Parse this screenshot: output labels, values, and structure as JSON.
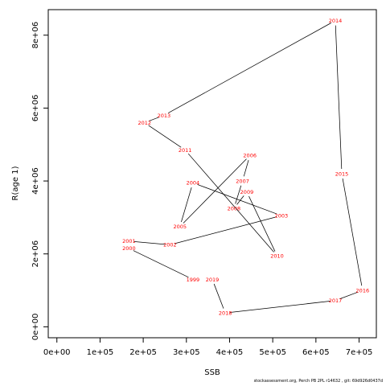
{
  "chart_data": {
    "type": "line",
    "xlabel": "SSB",
    "ylabel": "R(age 1)",
    "xlim": [
      -20000,
      740000
    ],
    "ylim": [
      -300000,
      8700000
    ],
    "x_ticks": [
      {
        "value": 0,
        "label": "0e+00"
      },
      {
        "value": 100000,
        "label": "1e+05"
      },
      {
        "value": 200000,
        "label": "2e+05"
      },
      {
        "value": 300000,
        "label": "3e+05"
      },
      {
        "value": 400000,
        "label": "4e+05"
      },
      {
        "value": 500000,
        "label": "5e+05"
      },
      {
        "value": 600000,
        "label": "6e+05"
      },
      {
        "value": 700000,
        "label": "7e+05"
      }
    ],
    "y_ticks": [
      {
        "value": 0,
        "label": "0e+00"
      },
      {
        "value": 2000000,
        "label": "2e+06"
      },
      {
        "value": 4000000,
        "label": "4e+06"
      },
      {
        "value": 6000000,
        "label": "6e+06"
      },
      {
        "value": 8000000,
        "label": "8e+06"
      }
    ],
    "points": [
      {
        "year": "1999",
        "x": 315000,
        "y": 1300000
      },
      {
        "year": "2000",
        "x": 167000,
        "y": 2150000
      },
      {
        "year": "2001",
        "x": 167000,
        "y": 2350000
      },
      {
        "year": "2002",
        "x": 262000,
        "y": 2250000
      },
      {
        "year": "2003",
        "x": 520000,
        "y": 3050000
      },
      {
        "year": "2004",
        "x": 315000,
        "y": 3950000
      },
      {
        "year": "2005",
        "x": 285000,
        "y": 2750000
      },
      {
        "year": "2006",
        "x": 447000,
        "y": 4700000
      },
      {
        "year": "2007",
        "x": 430000,
        "y": 4000000
      },
      {
        "year": "2008",
        "x": 410000,
        "y": 3250000
      },
      {
        "year": "2009",
        "x": 440000,
        "y": 3700000
      },
      {
        "year": "2010",
        "x": 510000,
        "y": 1950000
      },
      {
        "year": "2011",
        "x": 297000,
        "y": 4850000
      },
      {
        "year": "2012",
        "x": 203000,
        "y": 5600000
      },
      {
        "year": "2013",
        "x": 248000,
        "y": 5800000
      },
      {
        "year": "2014",
        "x": 645000,
        "y": 8400000
      },
      {
        "year": "2015",
        "x": 660000,
        "y": 4200000
      },
      {
        "year": "2016",
        "x": 708000,
        "y": 1000000
      },
      {
        "year": "2017",
        "x": 645000,
        "y": 720000
      },
      {
        "year": "2018",
        "x": 390000,
        "y": 380000
      },
      {
        "year": "2019",
        "x": 360000,
        "y": 1300000
      }
    ]
  },
  "footer": "stockassessment.org, Perch PB 2PL r14632 , git: 69d926d0437d"
}
